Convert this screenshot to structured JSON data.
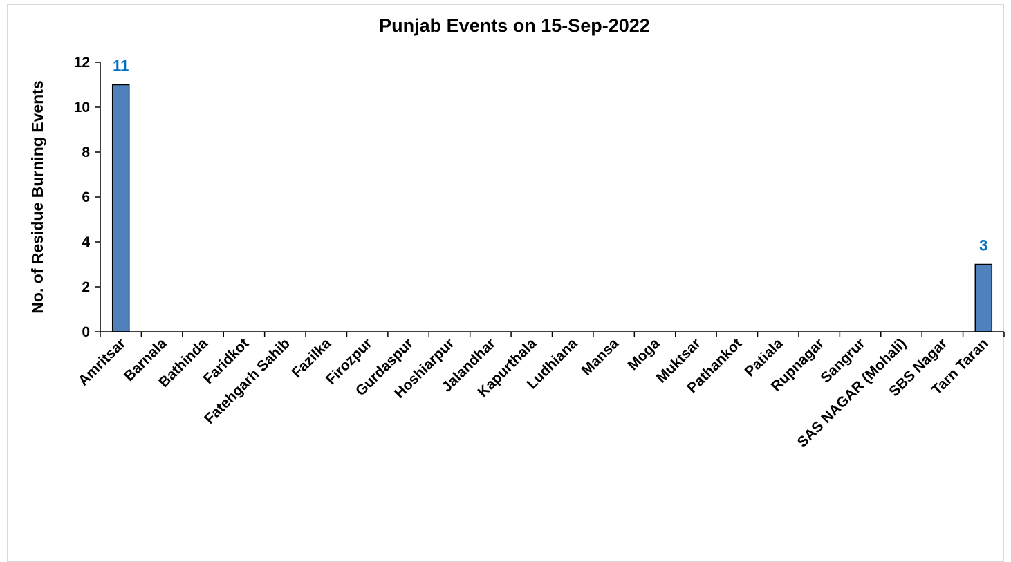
{
  "chart_data": {
    "type": "bar",
    "title": "Punjab Events on 15-Sep-2022",
    "xlabel": "",
    "ylabel": "No. of Residue Burning Events",
    "ylim": [
      0,
      12
    ],
    "yticks": [
      0,
      2,
      4,
      6,
      8,
      10,
      12
    ],
    "grid": false,
    "legend": "none",
    "categories": [
      "Amritsar",
      "Barnala",
      "Bathinda",
      "Faridkot",
      "Fatehgarh Sahib",
      "Fazilka",
      "Firozpur",
      "Gurdaspur",
      "Hoshiarpur",
      "Jalandhar",
      "Kapurthala",
      "Ludhiana",
      "Mansa",
      "Moga",
      "Muktsar",
      "Pathankot",
      "Patiala",
      "Rupnagar",
      "Sangrur",
      "SAS NAGAR (Mohali)",
      "SBS Nagar",
      "Tarn Taran"
    ],
    "values": [
      11,
      0,
      0,
      0,
      0,
      0,
      0,
      0,
      0,
      0,
      0,
      0,
      0,
      0,
      0,
      0,
      0,
      0,
      0,
      0,
      0,
      3
    ],
    "data_labels": [
      {
        "category": "Amritsar",
        "text": "11"
      },
      {
        "category": "Tarn Taran",
        "text": "3"
      }
    ],
    "colors": {
      "bar_fill": "#4F81BD",
      "bar_stroke": "#000000",
      "data_label": "#0070C0",
      "axis": "#000000",
      "frame": "#D9D9D9"
    }
  }
}
